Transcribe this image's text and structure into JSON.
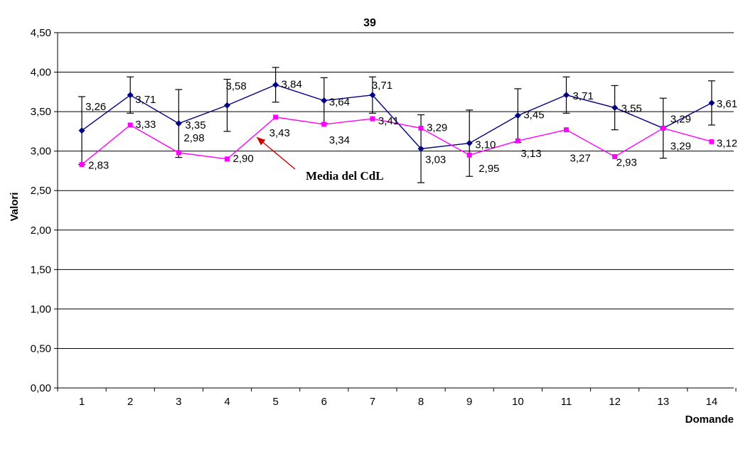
{
  "chart_data": {
    "type": "line",
    "title": "39",
    "xlabel": "Domande",
    "ylabel": "Valori",
    "categories": [
      "1",
      "2",
      "3",
      "4",
      "5",
      "6",
      "7",
      "8",
      "9",
      "10",
      "11",
      "12",
      "13",
      "14"
    ],
    "ylim": [
      0,
      4.5
    ],
    "y_tick_step": 0.5,
    "y_tick_labels": [
      "0,00",
      "0,50",
      "1,00",
      "1,50",
      "2,00",
      "2,50",
      "3,00",
      "3,50",
      "4,00",
      "4,50"
    ],
    "grid": true,
    "legend": "none",
    "series": [
      {
        "id": "dark-blue-diamond-series",
        "color": "#000080",
        "marker": "diamond",
        "values": [
          3.26,
          3.71,
          3.35,
          3.58,
          3.84,
          3.64,
          3.71,
          3.03,
          3.1,
          3.45,
          3.71,
          3.55,
          3.29,
          3.61
        ],
        "labels": [
          "3,26",
          "3,71",
          "3,35",
          "3,58",
          "3,84",
          "3,64",
          "3,71",
          "3,03",
          "3,10",
          "3,45",
          "3,71",
          "3,55",
          "3,29",
          "3,61"
        ],
        "error_bars": [
          0.43,
          0.23,
          0.43,
          0.33,
          0.22,
          0.29,
          0.23,
          0.43,
          0.42,
          0.34,
          0.23,
          0.28,
          0.38,
          0.28
        ]
      },
      {
        "id": "magenta-square-series",
        "color": "#FF00FF",
        "marker": "square",
        "values": [
          2.83,
          3.33,
          2.98,
          2.9,
          3.43,
          3.34,
          3.41,
          3.29,
          2.95,
          3.13,
          3.27,
          2.93,
          3.29,
          3.12
        ],
        "labels": [
          "2,83",
          "3,33",
          "2,98",
          "2,90",
          "3,43",
          "3,34",
          "3,41",
          "3,29",
          "2,95",
          "3,13",
          "3,27",
          "2,93",
          "3,29",
          "3,12"
        ],
        "error_bars": null
      }
    ],
    "annotation": {
      "text": "Media del CdL",
      "color": "#CC0000",
      "points_to_series": "magenta-square-series"
    }
  }
}
